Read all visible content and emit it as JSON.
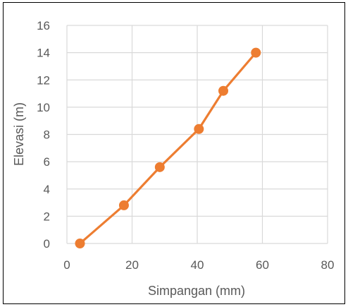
{
  "chart_data": {
    "type": "scatter",
    "title": "",
    "xlabel": "Simpangan (mm)",
    "ylabel": "Elevasi (m)",
    "xlim": [
      0,
      80
    ],
    "ylim": [
      0,
      16
    ],
    "x_ticks": [
      "0",
      "20",
      "40",
      "60",
      "80"
    ],
    "y_ticks": [
      "0",
      "2",
      "4",
      "6",
      "8",
      "10",
      "12",
      "14",
      "16"
    ],
    "grid": true,
    "legend": "none",
    "series": [
      {
        "x": [
          4,
          17.5,
          28.5,
          40.5,
          48,
          58
        ],
        "y": [
          0,
          2.8,
          5.6,
          8.4,
          11.2,
          14
        ],
        "color": "#ED7D31",
        "marker": "circle",
        "line": "straight"
      }
    ]
  },
  "colors": {
    "series": "#ED7D31",
    "grid": "#D9D9D9",
    "text": "#595959",
    "frame": "#000000"
  }
}
